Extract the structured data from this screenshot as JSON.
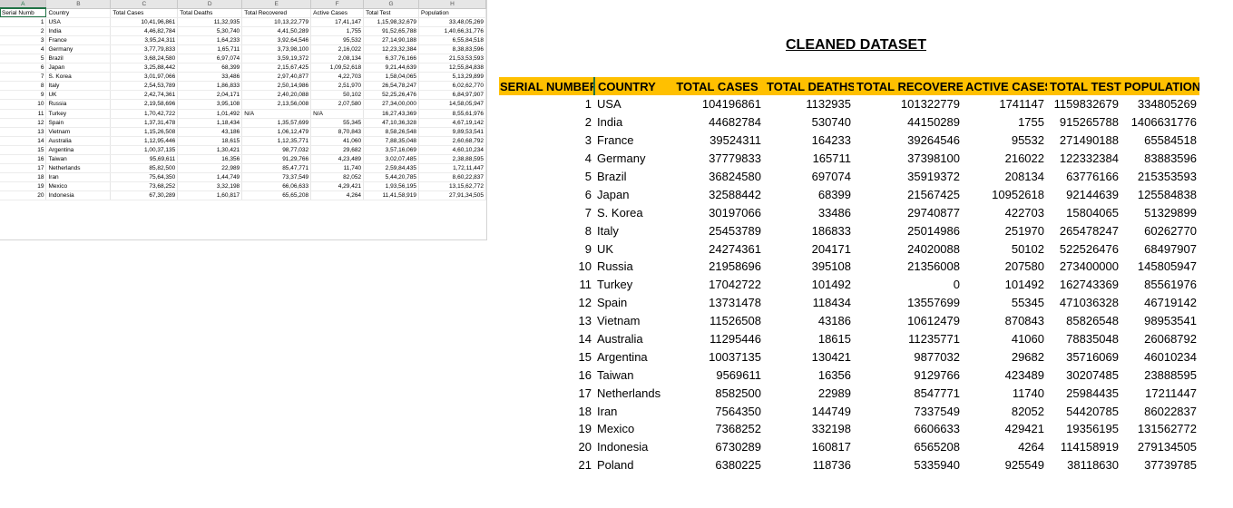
{
  "raw_sheet": {
    "column_letters": [
      "A",
      "B",
      "C",
      "D",
      "E",
      "F",
      "G",
      "H"
    ],
    "headers": [
      "Serial Numb",
      "Country",
      "Total Cases",
      "Total Deaths",
      "Total Recovered",
      "Active Cases",
      "Total Test",
      "Population"
    ],
    "rows": [
      [
        "1",
        "USA",
        "10,41,96,861",
        "11,32,935",
        "10,13,22,779",
        "17,41,147",
        "1,15,98,32,679",
        "33,48,05,269"
      ],
      [
        "2",
        "India",
        "4,46,82,784",
        "5,30,740",
        "4,41,50,289",
        "1,755",
        "91,52,65,788",
        "1,40,66,31,776"
      ],
      [
        "3",
        "France",
        "3,95,24,311",
        "1,64,233",
        "3,92,64,546",
        "95,532",
        "27,14,90,188",
        "6,55,84,518"
      ],
      [
        "4",
        "Germany",
        "3,77,79,833",
        "1,65,711",
        "3,73,98,100",
        "2,16,022",
        "12,23,32,384",
        "8,38,83,596"
      ],
      [
        "5",
        "Brazil",
        "3,68,24,580",
        "6,97,074",
        "3,59,19,372",
        "2,08,134",
        "6,37,76,166",
        "21,53,53,593"
      ],
      [
        "6",
        "Japan",
        "3,25,88,442",
        "68,399",
        "2,15,67,425",
        "1,09,52,618",
        "9,21,44,639",
        "12,55,84,838"
      ],
      [
        "7",
        "S. Korea",
        "3,01,97,066",
        "33,486",
        "2,97,40,877",
        "4,22,703",
        "1,58,04,065",
        "5,13,29,899"
      ],
      [
        "8",
        "Italy",
        "2,54,53,789",
        "1,86,833",
        "2,50,14,986",
        "2,51,970",
        "26,54,78,247",
        "6,02,62,770"
      ],
      [
        "9",
        "UK",
        "2,42,74,361",
        "2,04,171",
        "2,40,20,088",
        "50,102",
        "52,25,26,476",
        "6,84,97,907"
      ],
      [
        "10",
        "Russia",
        "2,19,58,696",
        "3,95,108",
        "2,13,56,008",
        "2,07,580",
        "27,34,00,000",
        "14,58,05,947"
      ],
      [
        "11",
        "Turkey",
        "1,70,42,722",
        "1,01,492",
        "N/A",
        "N/A",
        "16,27,43,369",
        "8,55,61,976"
      ],
      [
        "12",
        "Spain",
        "1,37,31,478",
        "1,18,434",
        "1,35,57,699",
        "55,345",
        "47,10,36,328",
        "4,67,19,142"
      ],
      [
        "13",
        "Vietnam",
        "1,15,26,508",
        "43,186",
        "1,06,12,479",
        "8,70,843",
        "8,58,26,548",
        "9,89,53,541"
      ],
      [
        "14",
        "Australia",
        "1,12,95,446",
        "18,615",
        "1,12,35,771",
        "41,060",
        "7,88,35,048",
        "2,60,68,792"
      ],
      [
        "15",
        "Argentina",
        "1,00,37,135",
        "1,30,421",
        "98,77,032",
        "29,682",
        "3,57,16,069",
        "4,60,10,234"
      ],
      [
        "16",
        "Taiwan",
        "95,69,611",
        "16,356",
        "91,29,766",
        "4,23,489",
        "3,02,07,485",
        "2,38,88,595"
      ],
      [
        "17",
        "Netherlands",
        "85,82,500",
        "22,989",
        "85,47,771",
        "11,740",
        "2,59,84,435",
        "1,72,11,447"
      ],
      [
        "18",
        "Iran",
        "75,64,350",
        "1,44,749",
        "73,37,549",
        "82,052",
        "5,44,20,785",
        "8,60,22,837"
      ],
      [
        "19",
        "Mexico",
        "73,68,252",
        "3,32,198",
        "66,06,633",
        "4,29,421",
        "1,93,56,195",
        "13,15,62,772"
      ],
      [
        "20",
        "Indonesia",
        "67,30,289",
        "1,60,817",
        "65,65,208",
        "4,264",
        "11,41,58,919",
        "27,91,34,505"
      ]
    ]
  },
  "cleaned": {
    "title": "CLEANED DATASET",
    "headers": [
      "SERIAL NUMBER",
      "COUNTRY",
      "TOTAL CASES",
      "TOTAL DEATHS",
      "TOTAL RECOVERED",
      "ACTIVE CASES",
      "TOTAL TEST",
      "POPULATION"
    ],
    "rows": [
      [
        "1",
        "USA",
        "104196861",
        "1132935",
        "101322779",
        "1741147",
        "1159832679",
        "334805269"
      ],
      [
        "2",
        "India",
        "44682784",
        "530740",
        "44150289",
        "1755",
        "915265788",
        "1406631776"
      ],
      [
        "3",
        "France",
        "39524311",
        "164233",
        "39264546",
        "95532",
        "271490188",
        "65584518"
      ],
      [
        "4",
        "Germany",
        "37779833",
        "165711",
        "37398100",
        "216022",
        "122332384",
        "83883596"
      ],
      [
        "5",
        "Brazil",
        "36824580",
        "697074",
        "35919372",
        "208134",
        "63776166",
        "215353593"
      ],
      [
        "6",
        "Japan",
        "32588442",
        "68399",
        "21567425",
        "10952618",
        "92144639",
        "125584838"
      ],
      [
        "7",
        "S. Korea",
        "30197066",
        "33486",
        "29740877",
        "422703",
        "15804065",
        "51329899"
      ],
      [
        "8",
        "Italy",
        "25453789",
        "186833",
        "25014986",
        "251970",
        "265478247",
        "60262770"
      ],
      [
        "9",
        "UK",
        "24274361",
        "204171",
        "24020088",
        "50102",
        "522526476",
        "68497907"
      ],
      [
        "10",
        "Russia",
        "21958696",
        "395108",
        "21356008",
        "207580",
        "273400000",
        "145805947"
      ],
      [
        "11",
        "Turkey",
        "17042722",
        "101492",
        "0",
        "101492",
        "162743369",
        "85561976"
      ],
      [
        "12",
        "Spain",
        "13731478",
        "118434",
        "13557699",
        "55345",
        "471036328",
        "46719142"
      ],
      [
        "13",
        "Vietnam",
        "11526508",
        "43186",
        "10612479",
        "870843",
        "85826548",
        "98953541"
      ],
      [
        "14",
        "Australia",
        "11295446",
        "18615",
        "11235771",
        "41060",
        "78835048",
        "26068792"
      ],
      [
        "15",
        "Argentina",
        "10037135",
        "130421",
        "9877032",
        "29682",
        "35716069",
        "46010234"
      ],
      [
        "16",
        "Taiwan",
        "9569611",
        "16356",
        "9129766",
        "423489",
        "30207485",
        "23888595"
      ],
      [
        "17",
        "Netherlands",
        "8582500",
        "22989",
        "8547771",
        "11740",
        "25984435",
        "17211447"
      ],
      [
        "18",
        "Iran",
        "7564350",
        "144749",
        "7337549",
        "82052",
        "54420785",
        "86022837"
      ],
      [
        "19",
        "Mexico",
        "7368252",
        "332198",
        "6606633",
        "429421",
        "19356195",
        "131562772"
      ],
      [
        "20",
        "Indonesia",
        "6730289",
        "160817",
        "6565208",
        "4264",
        "114158919",
        "279134505"
      ],
      [
        "21",
        "Poland",
        "6380225",
        "118736",
        "5335940",
        "925549",
        "38118630",
        "37739785"
      ]
    ]
  }
}
